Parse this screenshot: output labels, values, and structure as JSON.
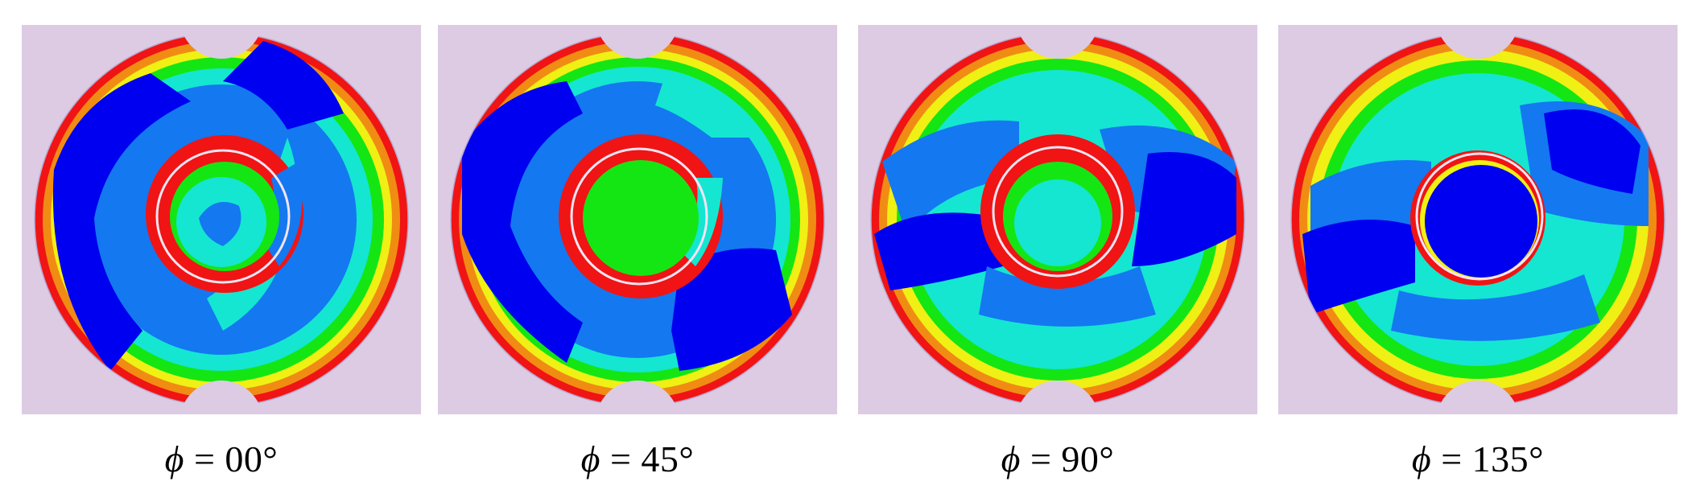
{
  "colors": {
    "background": "#dccbe3",
    "contour_low": "#0000f0",
    "contour_mid_low": "#1478f0",
    "contour_mid": "#14e6d2",
    "contour_mid_high": "#14e614",
    "contour_high_mid": "#f0f014",
    "contour_orange": "#f08c14",
    "contour_high": "#f01414",
    "reference_circle": "#ffffff"
  },
  "panels": [
    {
      "symbol": "ϕ",
      "value": "= 00°"
    },
    {
      "symbol": "ϕ",
      "value": "= 45°"
    },
    {
      "symbol": "ϕ",
      "value": "= 90°"
    },
    {
      "symbol": "ϕ",
      "value": "= 135°"
    }
  ]
}
